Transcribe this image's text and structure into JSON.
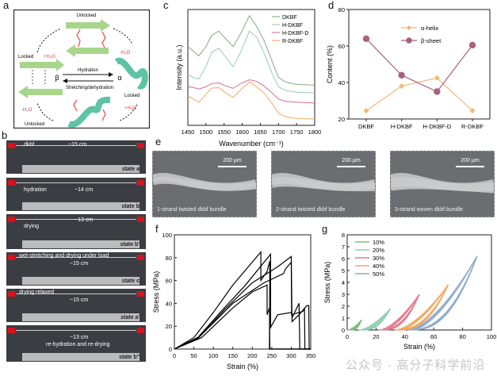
{
  "panels": {
    "a": {
      "label": "a",
      "center_forward": "Hydration",
      "center_backward": "Stretching/dehydration",
      "beta": "β",
      "alpha": "α",
      "top_state": "Unlocked",
      "left_state": "Locked",
      "right_state": "Locked",
      "bottom_state": "Unlocked",
      "water_plus": "+H₂O",
      "water_minus": "-H₂O"
    },
    "b": {
      "label": "b",
      "photos": [
        {
          "caption": "dkbf",
          "length": "~15 cm",
          "state": "state a"
        },
        {
          "caption": "hydration",
          "length": "~14 cm",
          "state": "state b"
        },
        {
          "caption": "drying",
          "length": "~13 cm",
          "state": "state b'"
        },
        {
          "caption": "wet-stretching and drying under load",
          "length": "~15 cm",
          "state": "state c"
        },
        {
          "caption": "drying relaxed",
          "length": "~15 cm",
          "state": "state a'"
        },
        {
          "caption": "re-hydration and re-drying",
          "length": "~13 cm",
          "state": "state b''"
        }
      ]
    },
    "e": {
      "label": "e",
      "images": [
        {
          "caption": "1-strand twisted dkbf bundle",
          "scale": "200 μm"
        },
        {
          "caption": "2-strand twisted dkbf bundle",
          "scale": "200 μm"
        },
        {
          "caption": "3-strand woven dkbf bundle",
          "scale": "200 μm"
        }
      ]
    }
  },
  "watermark": "公众号 · 高分子科学前沿",
  "chart_data": [
    {
      "id": "c",
      "panel_label": "c",
      "type": "line",
      "xlabel": "Wavenumber (cm⁻¹)",
      "ylabel": "Intensity (a.u.)",
      "xlim": [
        1450,
        1800
      ],
      "xticks": [
        1450,
        1500,
        1550,
        1600,
        1650,
        1700,
        1750,
        1800
      ],
      "yticks_shown": false,
      "x": [
        1450,
        1465,
        1480,
        1500,
        1515,
        1535,
        1555,
        1575,
        1595,
        1620,
        1640,
        1660,
        1680,
        1700,
        1720,
        1750,
        1800
      ],
      "series": [
        {
          "name": "DKBF",
          "color": "#8fb08a",
          "values": [
            7.6,
            7.3,
            7.0,
            7.6,
            8.3,
            8.6,
            8.1,
            7.6,
            8.4,
            9.6,
            8.9,
            8.0,
            6.8,
            5.6,
            5.3,
            5.15,
            5.1
          ]
        },
        {
          "name": "H-DKBF",
          "color": "#9fd0c2",
          "values": [
            5.8,
            5.6,
            5.5,
            6.3,
            7.2,
            7.5,
            6.9,
            6.3,
            7.2,
            8.6,
            8.2,
            7.2,
            6.0,
            5.0,
            4.75,
            4.65,
            4.6
          ]
        },
        {
          "name": "H-DKBF-D",
          "color": "#d47aa0",
          "values": [
            5.0,
            4.95,
            4.85,
            5.0,
            5.2,
            5.25,
            5.05,
            4.9,
            5.2,
            5.45,
            5.35,
            5.05,
            4.65,
            4.2,
            4.05,
            4.0,
            3.95
          ]
        },
        {
          "name": "R-DKBF",
          "color": "#f2b06b",
          "values": [
            4.4,
            4.2,
            4.0,
            4.5,
            4.9,
            4.95,
            4.6,
            4.3,
            4.8,
            5.3,
            5.0,
            4.6,
            4.0,
            3.3,
            3.05,
            2.95,
            2.9
          ]
        }
      ]
    },
    {
      "id": "d",
      "panel_label": "d",
      "type": "line",
      "xlabel": "",
      "ylabel": "Content (%)",
      "ylim": [
        20,
        80
      ],
      "yticks": [
        20,
        40,
        60,
        80
      ],
      "categories": [
        "DKBF",
        "H-DKBF",
        "H-DKBF-D",
        "R-DKBF"
      ],
      "legend_position": "top-center",
      "series": [
        {
          "name": "α-helix",
          "color": "#f0b978",
          "values": [
            24.5,
            38,
            42.5,
            24.5
          ]
        },
        {
          "name": "β-sheet",
          "color": "#a8617f",
          "values": [
            64,
            44,
            35,
            60.5
          ]
        }
      ]
    },
    {
      "id": "f",
      "panel_label": "f",
      "type": "line",
      "xlabel": "Strain (%)",
      "ylabel": "Stress (MPa)",
      "xlim": [
        0,
        350
      ],
      "ylim": [
        0,
        100
      ],
      "xticks": [
        0,
        50,
        100,
        150,
        200,
        250,
        300,
        350
      ],
      "yticks": [
        0,
        20,
        40,
        60,
        80,
        100
      ],
      "series": [
        {
          "name": "curve-1",
          "color": "#000000",
          "points": [
            [
              0,
              0
            ],
            [
              50,
              10
            ],
            [
              100,
              32
            ],
            [
              150,
              56
            ],
            [
              222,
              85
            ],
            [
              222,
              60
            ],
            [
              238,
              68
            ],
            [
              245,
              77
            ],
            [
              244,
              0
            ],
            [
              350,
              0
            ]
          ]
        },
        {
          "name": "curve-2",
          "color": "#000000",
          "points": [
            [
              0,
              0
            ],
            [
              60,
              10
            ],
            [
              120,
              33
            ],
            [
              180,
              55
            ],
            [
              247,
              83
            ],
            [
              247,
              19
            ],
            [
              265,
              30
            ],
            [
              300,
              32
            ],
            [
              303,
              28
            ],
            [
              320,
              40
            ],
            [
              322,
              0
            ],
            [
              350,
              0
            ]
          ]
        },
        {
          "name": "curve-3",
          "color": "#000000",
          "points": [
            [
              0,
              0
            ],
            [
              60,
              9
            ],
            [
              130,
              35
            ],
            [
              200,
              58
            ],
            [
              265,
              72
            ],
            [
              300,
              81
            ],
            [
              302,
              24
            ],
            [
              320,
              30
            ],
            [
              340,
              38
            ],
            [
              345,
              38
            ],
            [
              346,
              0
            ],
            [
              350,
              0
            ]
          ]
        },
        {
          "name": "curve-4",
          "color": "#000000",
          "points": [
            [
              0,
              0
            ],
            [
              65,
              11
            ],
            [
              150,
              40
            ],
            [
              230,
              58
            ],
            [
              280,
              66
            ],
            [
              285,
              70
            ],
            [
              300,
              76
            ],
            [
              301,
              30
            ],
            [
              330,
              33
            ],
            [
              334,
              36
            ],
            [
              335,
              0
            ],
            [
              350,
              0
            ]
          ]
        },
        {
          "name": "curve-5",
          "color": "#000000",
          "points": [
            [
              0,
              0
            ],
            [
              70,
              10
            ],
            [
              150,
              36
            ],
            [
              200,
              50
            ],
            [
              238,
              56
            ],
            [
              238,
              30
            ],
            [
              244,
              36
            ],
            [
              245,
              0
            ],
            [
              350,
              0
            ]
          ]
        }
      ]
    },
    {
      "id": "g",
      "panel_label": "g",
      "type": "line",
      "xlabel": "Strain (%)",
      "ylabel": "Stress (MPa)",
      "xlim": [
        0,
        100
      ],
      "ylim": [
        0,
        8
      ],
      "xticks": [
        0,
        20,
        40,
        60,
        80,
        100
      ],
      "yticks": [
        0,
        1,
        2,
        3,
        4,
        5,
        6,
        7,
        8
      ],
      "legend_position": "top-left",
      "series": [
        {
          "name": "10%",
          "color": "#7fbf7a",
          "start": 0,
          "end": 10,
          "peak": 0.85
        },
        {
          "name": "20%",
          "color": "#8ccfb0",
          "start": 8,
          "end": 30,
          "peak": 1.8
        },
        {
          "name": "30%",
          "color": "#e27a8e",
          "start": 22,
          "end": 50,
          "peak": 3.0
        },
        {
          "name": "40%",
          "color": "#f5a55a",
          "start": 33,
          "end": 70,
          "peak": 3.8
        },
        {
          "name": "50%",
          "color": "#8eaacb",
          "start": 42,
          "end": 90,
          "peak": 6.2
        }
      ]
    }
  ]
}
